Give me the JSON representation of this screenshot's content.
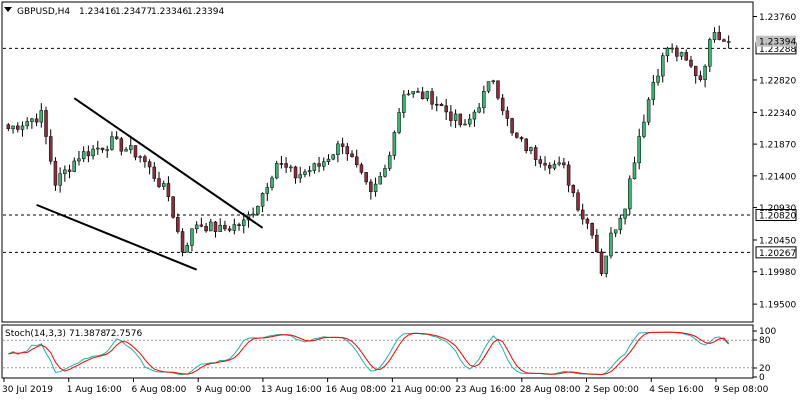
{
  "header": {
    "symbol_label": "GBPUSD,H4",
    "ohlc": [
      "1.23416",
      "1.23477",
      "1.23346",
      "1.23394"
    ],
    "dropdown_icon": "triangle-down-icon"
  },
  "colors": {
    "bull": "#3cb371",
    "bear": "#8b2e3c",
    "wick": "#000000",
    "stoch_main": "#20b2aa",
    "stoch_signal": "#ff0000",
    "grid": "#000000"
  },
  "indicator": {
    "label": "Stoch(14,3,3)",
    "value_main": "71.3878",
    "value_signal": "72.7576",
    "levels": [
      "100",
      "80",
      "20",
      "0"
    ]
  },
  "chart_data": {
    "type": "candlestick",
    "title": "GBPUSD,H4",
    "ylim": [
      1.1925,
      1.2396
    ],
    "price_ticks": [
      "1.23760",
      "1.23288",
      "1.22820",
      "1.22340",
      "1.21870",
      "1.21400",
      "1.20930",
      "1.20820",
      "1.20450",
      "1.20267",
      "1.19980",
      "1.19500"
    ],
    "time_ticks": [
      "30 Jul 2019",
      "1 Aug 16:00",
      "6 Aug 08:00",
      "9 Aug 00:00",
      "13 Aug 16:00",
      "16 Aug 08:00",
      "21 Aug 00:00",
      "23 Aug 16:00",
      "28 Aug 08:00",
      "2 Sep 00:00",
      "4 Sep 16:00",
      "9 Sep 08:00"
    ],
    "horizontal_lines": [
      {
        "price": 1.23288,
        "label": "1.23288",
        "style": "dashed"
      },
      {
        "price": 1.2082,
        "label": "1.20820",
        "style": "dashed"
      },
      {
        "price": 1.20267,
        "label": "1.20267",
        "style": "dashed"
      }
    ],
    "current_price": {
      "price": 1.23394,
      "label": "1.23394"
    },
    "trendlines": [
      {
        "from": [
          14,
          1.2255
        ],
        "to": [
          54,
          1.2063
        ]
      },
      {
        "from": [
          6,
          1.2097
        ],
        "to": [
          40,
          1.2001
        ]
      }
    ],
    "key_points": [
      {
        "bar": 0,
        "price": 1.221
      },
      {
        "bar": 7,
        "price": 1.223
      },
      {
        "bar": 10,
        "price": 1.213
      },
      {
        "bar": 15,
        "price": 1.217
      },
      {
        "bar": 22,
        "price": 1.219
      },
      {
        "bar": 28,
        "price": 1.217
      },
      {
        "bar": 34,
        "price": 1.211
      },
      {
        "bar": 37,
        "price": 1.203
      },
      {
        "bar": 40,
        "price": 1.207
      },
      {
        "bar": 45,
        "price": 1.206
      },
      {
        "bar": 50,
        "price": 1.207
      },
      {
        "bar": 53,
        "price": 1.21
      },
      {
        "bar": 55,
        "price": 1.213
      },
      {
        "bar": 57,
        "price": 1.216
      },
      {
        "bar": 61,
        "price": 1.214
      },
      {
        "bar": 66,
        "price": 1.2155
      },
      {
        "bar": 71,
        "price": 1.219
      },
      {
        "bar": 77,
        "price": 1.211
      },
      {
        "bar": 80,
        "price": 1.215
      },
      {
        "bar": 84,
        "price": 1.2265
      },
      {
        "bar": 90,
        "price": 1.2255
      },
      {
        "bar": 97,
        "price": 1.221
      },
      {
        "bar": 103,
        "price": 1.2285
      },
      {
        "bar": 107,
        "price": 1.22
      },
      {
        "bar": 112,
        "price": 1.217
      },
      {
        "bar": 118,
        "price": 1.215
      },
      {
        "bar": 122,
        "price": 1.208
      },
      {
        "bar": 124,
        "price": 1.206
      },
      {
        "bar": 126,
        "price": 1.2
      },
      {
        "bar": 128,
        "price": 1.205
      },
      {
        "bar": 131,
        "price": 1.21
      },
      {
        "bar": 134,
        "price": 1.22
      },
      {
        "bar": 137,
        "price": 1.228
      },
      {
        "bar": 140,
        "price": 1.233
      },
      {
        "bar": 143,
        "price": 1.2315
      },
      {
        "bar": 147,
        "price": 1.2285
      },
      {
        "bar": 150,
        "price": 1.236
      },
      {
        "bar": 152,
        "price": 1.2339
      }
    ],
    "stochastic": {
      "main": 71.3878,
      "signal": 72.7576,
      "levels": [
        80,
        20
      ]
    }
  }
}
